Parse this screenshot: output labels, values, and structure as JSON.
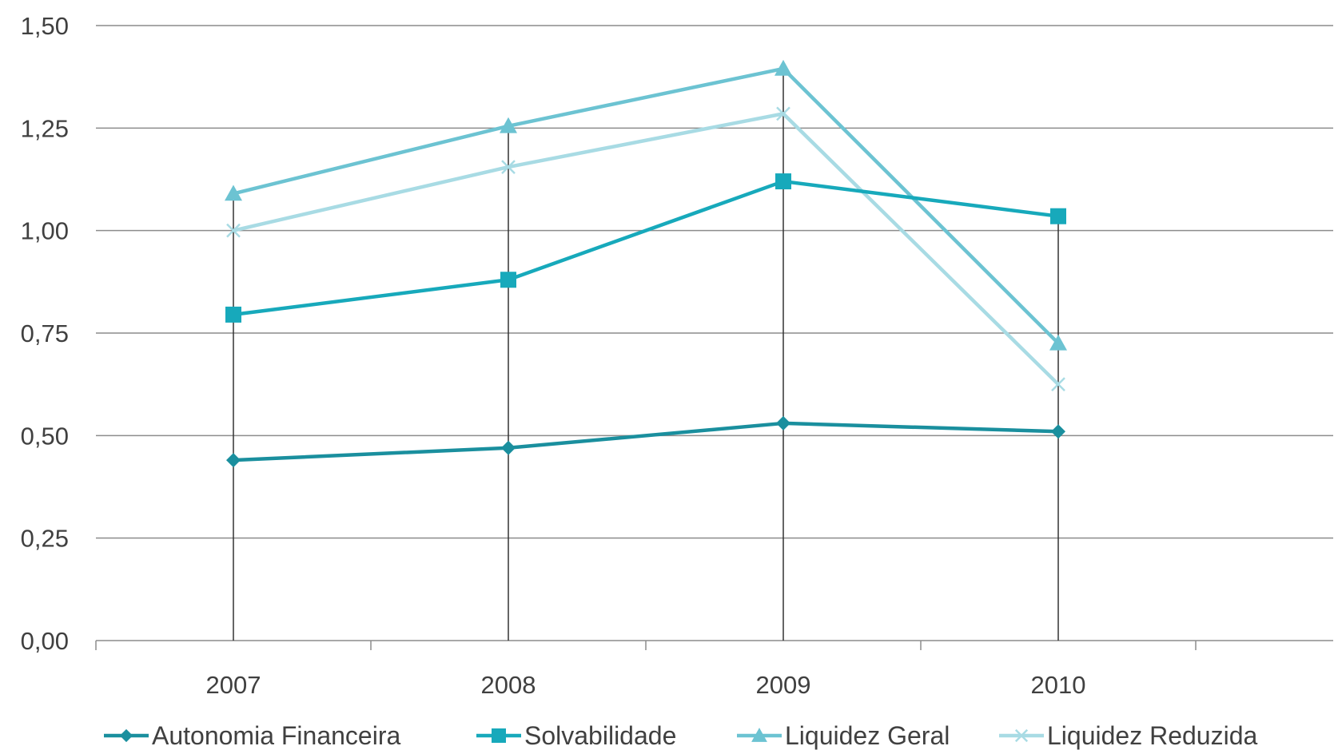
{
  "chart_data": {
    "type": "line",
    "categories": [
      "2007",
      "2008",
      "2009",
      "2010"
    ],
    "ylim": [
      0,
      1.5
    ],
    "yticks": [
      0,
      0.25,
      0.5,
      0.75,
      1.0,
      1.25,
      1.5
    ],
    "ytick_labels": [
      "0,00",
      "0,25",
      "0,50",
      "0,75",
      "1,00",
      "1,25",
      "1,50"
    ],
    "grid": true,
    "legend_position": "bottom",
    "drop_lines": true,
    "series": [
      {
        "name": "Autonomia Financeira",
        "values": [
          0.44,
          0.47,
          0.53,
          0.51
        ],
        "color": "#1a8f9e",
        "marker": "diamond"
      },
      {
        "name": "Solvabilidade",
        "values": [
          0.795,
          0.88,
          1.12,
          1.035
        ],
        "color": "#17a9bb",
        "marker": "square"
      },
      {
        "name": "Liquidez Geral",
        "values": [
          1.09,
          1.255,
          1.395,
          0.725
        ],
        "color": "#6cc3d2",
        "marker": "triangle"
      },
      {
        "name": "Liquidez Reduzida",
        "values": [
          1.0,
          1.155,
          1.285,
          0.625
        ],
        "color": "#a8dbe4",
        "marker": "x"
      }
    ]
  }
}
